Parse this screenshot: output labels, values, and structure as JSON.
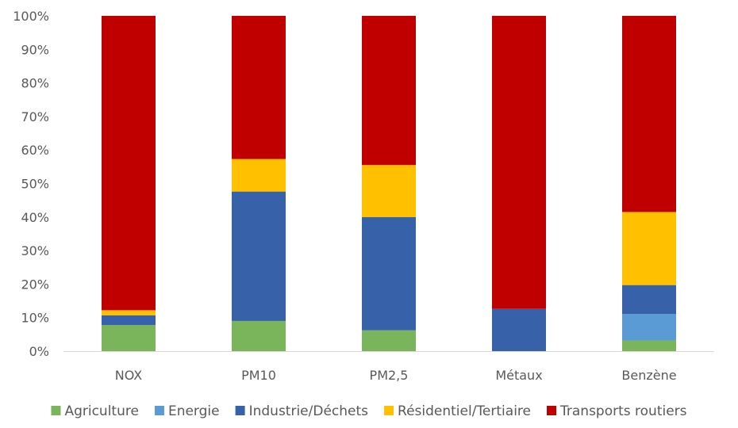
{
  "chart_data": {
    "type": "bar",
    "stacked": true,
    "percent": true,
    "categories": [
      "NOX",
      "PM10",
      "PM2,5",
      "Métaux",
      "Benzène"
    ],
    "series": [
      {
        "name": "Agriculture",
        "color": "#7ab55c",
        "values": [
          7.8,
          9.0,
          6.2,
          0.0,
          3.2
        ]
      },
      {
        "name": "Energie",
        "color": "#5b9bd5",
        "values": [
          0.0,
          0.0,
          0.0,
          0.0,
          7.9
        ]
      },
      {
        "name": "Industrie/Déchets",
        "color": "#3762a9",
        "values": [
          2.9,
          38.6,
          33.8,
          12.6,
          8.6
        ]
      },
      {
        "name": "Résidentiel/Tertiaire",
        "color": "#ffc000",
        "values": [
          1.5,
          9.7,
          15.5,
          0.0,
          21.8
        ]
      },
      {
        "name": "Transports routiers",
        "color": "#c00000",
        "values": [
          87.8,
          42.7,
          44.5,
          87.4,
          58.5
        ]
      }
    ],
    "ylim": [
      0,
      100
    ],
    "y_ticks": [
      "0%",
      "10%",
      "20%",
      "30%",
      "40%",
      "50%",
      "60%",
      "70%",
      "80%",
      "90%",
      "100%"
    ],
    "grid": false,
    "legend_position": "bottom"
  }
}
